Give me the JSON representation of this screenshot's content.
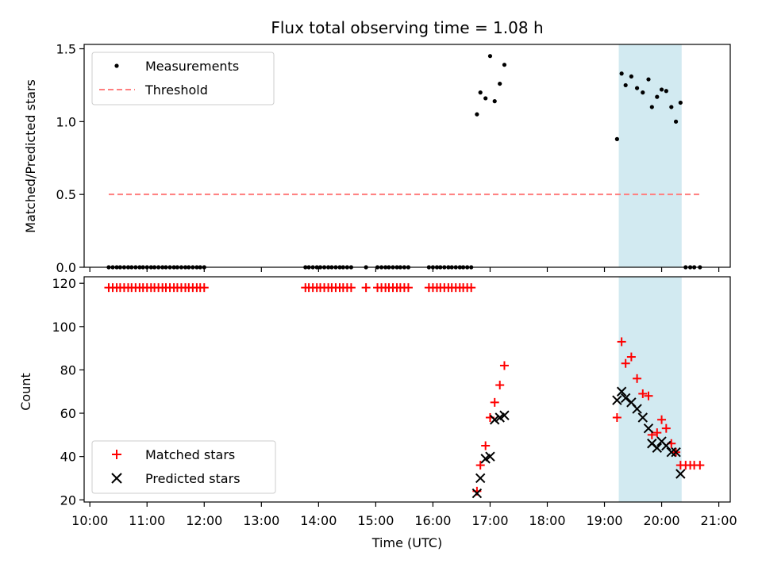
{
  "chart_data": {
    "title": "Flux total observing time = 1.08 h",
    "xlabel": "Time (UTC)",
    "x_tick_labels": [
      "10:00",
      "11:00",
      "12:00",
      "13:00",
      "14:00",
      "15:00",
      "16:00",
      "17:00",
      "18:00",
      "19:00",
      "20:00",
      "21:00"
    ],
    "x_tick_hours": [
      10,
      11,
      12,
      13,
      14,
      15,
      16,
      17,
      18,
      19,
      20,
      21
    ],
    "xlim_hours": [
      9.9,
      21.2
    ],
    "highlight_hours": [
      19.25,
      20.35
    ],
    "colors": {
      "highlight": "#add8e6",
      "threshold": "#ff7f7f",
      "matched": "#ff0000",
      "predicted": "#000000",
      "measurement": "#000000"
    },
    "panels": [
      {
        "type": "scatter",
        "ylabel": "Matched/Predicted stars",
        "ylim": [
          0,
          1.53
        ],
        "y_ticks": [
          0,
          0.5,
          1.0,
          1.5
        ],
        "y_tick_labels": [
          "0.0",
          "0.5",
          "1.0",
          "1.5"
        ],
        "legend_position": "top-left",
        "series": [
          {
            "name": "Measurements",
            "marker": "dot",
            "x": [
              10.33,
              10.4,
              10.47,
              10.53,
              10.6,
              10.67,
              10.73,
              10.8,
              10.87,
              10.93,
              11.0,
              11.07,
              11.13,
              11.2,
              11.27,
              11.33,
              11.4,
              11.47,
              11.53,
              11.6,
              11.67,
              11.73,
              11.8,
              11.87,
              11.93,
              12.0,
              13.77,
              13.83,
              13.9,
              13.97,
              14.03,
              14.1,
              14.17,
              14.23,
              14.3,
              14.37,
              14.43,
              14.5,
              14.57,
              14.83,
              15.03,
              15.1,
              15.17,
              15.23,
              15.3,
              15.37,
              15.43,
              15.5,
              15.57,
              15.93,
              16.0,
              16.07,
              16.13,
              16.2,
              16.27,
              16.33,
              16.4,
              16.47,
              16.53,
              16.6,
              16.67,
              16.77,
              16.83,
              16.92,
              17.0,
              17.08,
              17.17,
              17.25,
              19.22,
              19.3,
              19.37,
              19.47,
              19.57,
              19.67,
              19.77,
              19.83,
              19.92,
              20.0,
              20.08,
              20.17,
              20.25,
              20.33,
              20.42,
              20.5,
              20.57,
              20.67
            ],
            "y": [
              0,
              0,
              0,
              0,
              0,
              0,
              0,
              0,
              0,
              0,
              0,
              0,
              0,
              0,
              0,
              0,
              0,
              0,
              0,
              0,
              0,
              0,
              0,
              0,
              0,
              0,
              0,
              0,
              0,
              0,
              0,
              0,
              0,
              0,
              0,
              0,
              0,
              0,
              0,
              0,
              0,
              0,
              0,
              0,
              0,
              0,
              0,
              0,
              0,
              0,
              0,
              0,
              0,
              0,
              0,
              0,
              0,
              0,
              0,
              0,
              0,
              1.05,
              1.2,
              1.16,
              1.45,
              1.14,
              1.26,
              1.39,
              0.88,
              1.33,
              1.25,
              1.31,
              1.23,
              1.2,
              1.29,
              1.1,
              1.17,
              1.22,
              1.21,
              1.1,
              1.0,
              1.13,
              0,
              0,
              0,
              0
            ]
          },
          {
            "name": "Threshold",
            "type": "line",
            "style": "dashed",
            "x": [
              10.33,
              20.67
            ],
            "y": [
              0.5,
              0.5
            ]
          }
        ]
      },
      {
        "type": "scatter",
        "ylabel": "Count",
        "ylim": [
          19,
          123
        ],
        "y_ticks": [
          20,
          40,
          60,
          80,
          100,
          120
        ],
        "y_tick_labels": [
          "20",
          "40",
          "60",
          "80",
          "100",
          "120"
        ],
        "legend_position": "bottom-left",
        "series": [
          {
            "name": "Matched stars",
            "marker": "plus",
            "x": [
              10.33,
              10.4,
              10.47,
              10.53,
              10.6,
              10.67,
              10.73,
              10.8,
              10.87,
              10.93,
              11.0,
              11.07,
              11.13,
              11.2,
              11.27,
              11.33,
              11.4,
              11.47,
              11.53,
              11.6,
              11.67,
              11.73,
              11.8,
              11.87,
              11.93,
              12.0,
              13.77,
              13.83,
              13.9,
              13.97,
              14.03,
              14.1,
              14.17,
              14.23,
              14.3,
              14.37,
              14.43,
              14.5,
              14.57,
              14.83,
              15.03,
              15.1,
              15.17,
              15.23,
              15.3,
              15.37,
              15.43,
              15.5,
              15.57,
              15.93,
              16.0,
              16.07,
              16.13,
              16.2,
              16.27,
              16.33,
              16.4,
              16.47,
              16.53,
              16.6,
              16.67,
              16.77,
              16.83,
              16.92,
              17.0,
              17.08,
              17.17,
              17.25,
              19.22,
              19.3,
              19.37,
              19.47,
              19.57,
              19.67,
              19.77,
              19.83,
              19.92,
              20.0,
              20.08,
              20.17,
              20.25,
              20.33,
              20.42,
              20.5,
              20.57,
              20.67
            ],
            "y": [
              118,
              118,
              118,
              118,
              118,
              118,
              118,
              118,
              118,
              118,
              118,
              118,
              118,
              118,
              118,
              118,
              118,
              118,
              118,
              118,
              118,
              118,
              118,
              118,
              118,
              118,
              118,
              118,
              118,
              118,
              118,
              118,
              118,
              118,
              118,
              118,
              118,
              118,
              118,
              118,
              118,
              118,
              118,
              118,
              118,
              118,
              118,
              118,
              118,
              118,
              118,
              118,
              118,
              118,
              118,
              118,
              118,
              118,
              118,
              118,
              118,
              24,
              36,
              45,
              58,
              65,
              73,
              82,
              58,
              93,
              83,
              86,
              76,
              69,
              68,
              50,
              51,
              57,
              53,
              46,
              42,
              36,
              36,
              36,
              36,
              36
            ]
          },
          {
            "name": "Predicted stars",
            "marker": "x",
            "x": [
              16.77,
              16.83,
              16.92,
              17.0,
              17.08,
              17.17,
              17.25,
              19.22,
              19.3,
              19.37,
              19.47,
              19.57,
              19.67,
              19.77,
              19.83,
              19.92,
              20.0,
              20.08,
              20.17,
              20.25,
              20.33
            ],
            "y": [
              23,
              30,
              39,
              40,
              57,
              58,
              59,
              66,
              70,
              67,
              65,
              62,
              58,
              53,
              46,
              44,
              47,
              45,
              42,
              42,
              32
            ]
          }
        ]
      }
    ]
  }
}
